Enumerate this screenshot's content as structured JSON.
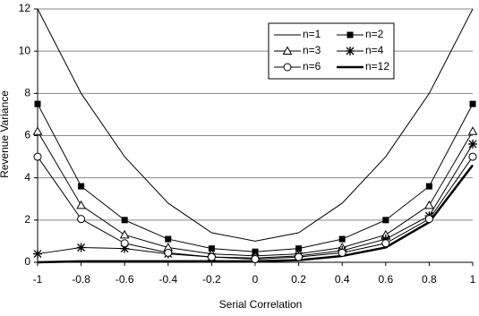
{
  "chart_data": {
    "type": "line",
    "xlabel": "Serial Correlation",
    "ylabel": "Revenue Variance",
    "x": [
      -1,
      -0.8,
      -0.6,
      -0.4,
      -0.2,
      0,
      0.2,
      0.4,
      0.6,
      0.8,
      1
    ],
    "xlim": [
      -1,
      1
    ],
    "xticks": [
      -1,
      -0.8,
      -0.6,
      -0.4,
      -0.2,
      0,
      0.2,
      0.4,
      0.6,
      0.8,
      1
    ],
    "ylim": [
      0,
      12
    ],
    "yticks": [
      0,
      2,
      4,
      6,
      8,
      10,
      12
    ],
    "grid": true,
    "legend_position": "upper right",
    "series": [
      {
        "name": "n=1",
        "color": "#000000",
        "marker": "none",
        "line_width": 1,
        "values": [
          12,
          8.0,
          5.0,
          2.8,
          1.4,
          1.0,
          1.4,
          2.8,
          5.0,
          8.0,
          12
        ]
      },
      {
        "name": "n=2",
        "color": "#000000",
        "marker": "square",
        "line_width": 1,
        "values": [
          7.5,
          3.6,
          2.0,
          1.1,
          0.65,
          0.5,
          0.65,
          1.1,
          2.0,
          3.6,
          7.5
        ]
      },
      {
        "name": "n=3",
        "color": "#000000",
        "marker": "triangle",
        "line_width": 1,
        "values": [
          6.2,
          2.7,
          1.3,
          0.7,
          0.4,
          0.3,
          0.4,
          0.7,
          1.3,
          2.7,
          6.2
        ]
      },
      {
        "name": "n=4",
        "color": "#000000",
        "marker": "star",
        "line_width": 1,
        "values": [
          0.4,
          0.7,
          0.65,
          0.4,
          0.25,
          0.2,
          0.3,
          0.55,
          1.1,
          2.2,
          5.6
        ]
      },
      {
        "name": "n=6",
        "color": "#000000",
        "marker": "circle",
        "line_width": 1,
        "values": [
          5.0,
          2.05,
          0.9,
          0.45,
          0.25,
          0.15,
          0.25,
          0.45,
          0.9,
          2.05,
          5.0
        ]
      },
      {
        "name": "n=12",
        "color": "#000000",
        "marker": "none",
        "line_width": 2.5,
        "values": [
          0,
          0.05,
          0.05,
          0.05,
          0.05,
          0.05,
          0.1,
          0.3,
          0.7,
          1.9,
          4.6
        ]
      }
    ]
  }
}
